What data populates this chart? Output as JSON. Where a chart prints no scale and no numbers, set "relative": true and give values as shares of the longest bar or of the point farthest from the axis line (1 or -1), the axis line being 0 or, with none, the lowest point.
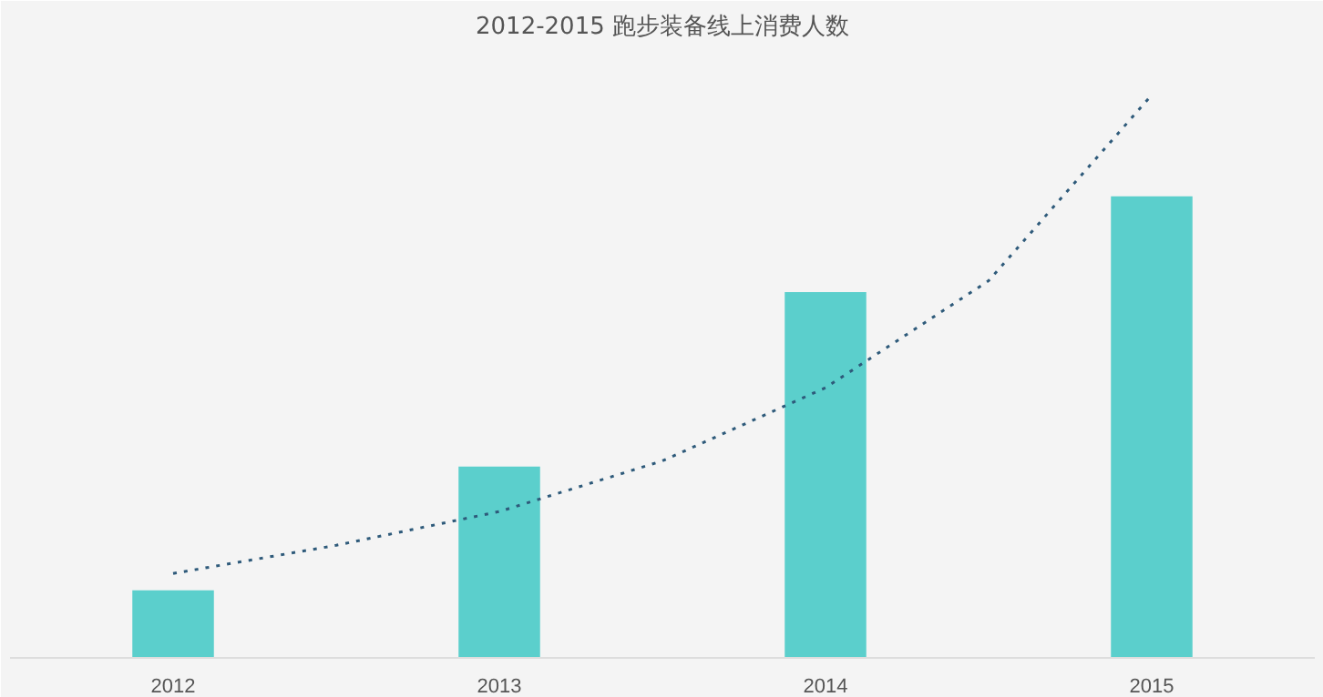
{
  "chart_data": {
    "type": "bar",
    "title": "2012-2015 跑步装备线上消费人数",
    "relative": true,
    "x": [
      2012,
      2013,
      2014,
      2015
    ],
    "xlim": [
      2011.5,
      2015.5
    ],
    "xticks": [
      2012,
      2013,
      2014,
      2015
    ],
    "series": [
      {
        "color": "#5bcfcc",
        "values": [
          0.12,
          0.34,
          0.65,
          0.82
        ]
      },
      {
        "type": "line",
        "color": "#2e5a7a",
        "line_style": "dotted",
        "x": [
          2012,
          2012.5,
          2013,
          2013.5,
          2014,
          2014.5,
          2015
        ],
        "values": [
          0.15,
          0.2,
          0.26,
          0.35,
          0.48,
          0.67,
          1
        ]
      }
    ],
    "grid": false
  }
}
